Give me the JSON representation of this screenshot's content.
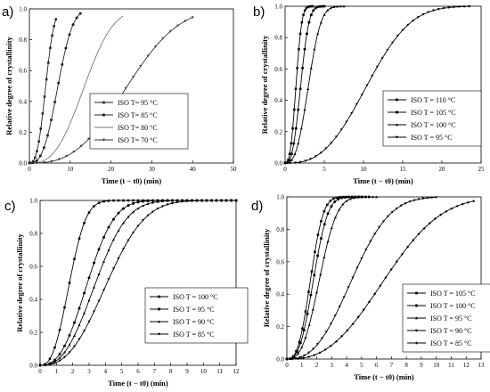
{
  "chart_data": [
    {
      "type": "line",
      "panel_label": "a)",
      "xlabel": "Time (t − t0) (min)",
      "ylabel": "Relative degree of crystallinity",
      "xlim": [
        0,
        50
      ],
      "ylim": [
        0,
        1.0
      ],
      "xticks": [
        "0",
        "10",
        "20",
        "30",
        "40",
        "50"
      ],
      "yticks": [
        "0.0",
        "0.2",
        "0.4",
        "0.6",
        "0.8",
        "1.0"
      ],
      "legend_position": "center-right",
      "series": [
        {
          "name": "ISO T= 95 °C",
          "color": "#222222",
          "n": 2.8,
          "t_half": 4.0,
          "t_end": 6.5,
          "markers": 14
        },
        {
          "name": "ISO T= 85 °C",
          "color": "#222222",
          "n": 2.8,
          "t_half": 7.0,
          "t_end": 12.5,
          "markers": 14
        },
        {
          "name": "ISO T= 80 °C",
          "color": "#777777",
          "n": 2.8,
          "t_half": 13.5,
          "t_end": 23.0,
          "markers": 0
        },
        {
          "name": "ISO T= 70 °C",
          "color": "#333333",
          "n": 2.8,
          "t_half": 24.0,
          "t_end": 40.0,
          "markers": 22
        }
      ]
    },
    {
      "type": "line",
      "panel_label": "b)",
      "xlabel": "Time (t − t0) (min)",
      "ylabel": "Relative degree of crystallinity",
      "xlim": [
        0,
        25
      ],
      "ylim": [
        0,
        1.0
      ],
      "xticks": [
        "0",
        "5",
        "10",
        "15",
        "20",
        "25"
      ],
      "yticks": [
        "0.0",
        "0.2",
        "0.4",
        "0.6",
        "0.8",
        "1.0"
      ],
      "legend_position": "center-right",
      "series": [
        {
          "name": "ISO T = 110 °C",
          "color": "#000000",
          "n": 2.8,
          "t_half": 1.4,
          "t_end": 3.5,
          "markers": 18
        },
        {
          "name": "ISO T = 105 °C",
          "color": "#000000",
          "n": 2.8,
          "t_half": 2.0,
          "t_end": 5.0,
          "markers": 18
        },
        {
          "name": "ISO T = 100 °C",
          "color": "#000000",
          "n": 2.8,
          "t_half": 3.0,
          "t_end": 7.5,
          "markers": 18
        },
        {
          "name": "ISO T = 95 °C",
          "color": "#000000",
          "n": 2.8,
          "t_half": 10.5,
          "t_end": 23.5,
          "markers": 36
        }
      ]
    },
    {
      "type": "line",
      "panel_label": "c)",
      "xlabel": "Time (t − t0) (min)",
      "ylabel": "Relative degree of crystallinity",
      "xlim": [
        0,
        12
      ],
      "ylim": [
        0,
        1.0
      ],
      "xticks": [
        "0",
        "1",
        "2",
        "3",
        "4",
        "5",
        "6",
        "7",
        "8",
        "9",
        "10",
        "11",
        "12"
      ],
      "yticks": [
        "0.0",
        "0.2",
        "0.4",
        "0.6",
        "0.8",
        "1.0"
      ],
      "legend_position": "center-right",
      "series": [
        {
          "name": "ISO T = 100 °C",
          "color": "#000000",
          "n": 2.6,
          "t_half": 1.8,
          "t_end": 12.0,
          "markers": 40
        },
        {
          "name": "ISO T = 95 °C",
          "color": "#000000",
          "n": 2.6,
          "t_half": 2.9,
          "t_end": 12.0,
          "markers": 40
        },
        {
          "name": "ISO T = 90 °C",
          "color": "#000000",
          "n": 2.6,
          "t_half": 3.4,
          "t_end": 12.0,
          "markers": 40
        },
        {
          "name": "ISO T = 85 °C",
          "color": "#000000",
          "n": 2.6,
          "t_half": 4.1,
          "t_end": 12.0,
          "markers": 40
        }
      ]
    },
    {
      "type": "line",
      "panel_label": "d)",
      "xlabel": "Time (t − t0) (min)",
      "ylabel": "Relative degree of crystallinity",
      "xlim": [
        0,
        13
      ],
      "ylim": [
        0,
        1.0
      ],
      "xticks": [
        "0",
        "1",
        "2",
        "3",
        "4",
        "5",
        "6",
        "7",
        "8",
        "9",
        "10",
        "11",
        "12",
        "13"
      ],
      "yticks": [
        "0.0",
        "0.2",
        "0.4",
        "0.6",
        "0.8",
        "1.0"
      ],
      "legend_position": "center-right",
      "series": [
        {
          "name": "ISO T = 105 °C",
          "color": "#000000",
          "n": 2.8,
          "t_half": 1.6,
          "t_end": 5.0,
          "markers": 24
        },
        {
          "name": "ISO T = 100 °C",
          "color": "#000000",
          "n": 2.8,
          "t_half": 1.8,
          "t_end": 5.5,
          "markers": 24
        },
        {
          "name": "ISO T = 95 °C",
          "color": "#000000",
          "n": 2.8,
          "t_half": 2.2,
          "t_end": 6.0,
          "markers": 24
        },
        {
          "name": "ISO T = 90 °C",
          "color": "#000000",
          "n": 2.6,
          "t_half": 4.4,
          "t_end": 10.0,
          "markers": 34
        },
        {
          "name": "ISO T = 85 °C",
          "color": "#000000",
          "n": 2.6,
          "t_half": 6.6,
          "t_end": 12.5,
          "markers": 34
        }
      ]
    }
  ]
}
